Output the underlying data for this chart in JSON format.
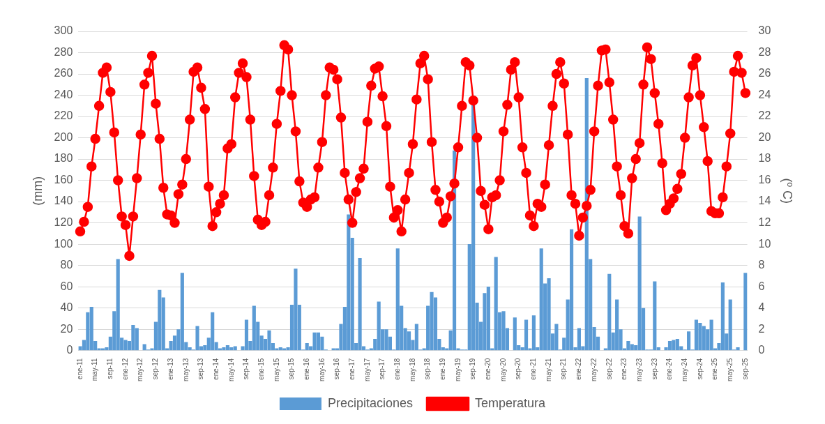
{
  "chart_data": {
    "type": "bar",
    "ylabel": "(mm)",
    "y2label": "(º C)",
    "categories": [
      "ene-11",
      null,
      null,
      null,
      "may-11",
      null,
      null,
      null,
      "sep-11",
      null,
      null,
      null,
      "ene-12",
      null,
      null,
      null,
      "may-12",
      null,
      null,
      null,
      "sep-12",
      null,
      null,
      null,
      "ene-13",
      null,
      null,
      null,
      "may-13",
      null,
      null,
      null,
      "sep-13",
      null,
      null,
      null,
      "ene-14",
      null,
      null,
      null,
      "may-14",
      null,
      null,
      null,
      "sep-14",
      null,
      null,
      null,
      "ene-15",
      null,
      null,
      null,
      "may-15",
      null,
      null,
      null,
      "sep-15",
      null,
      null,
      null,
      "ene-16",
      null,
      null,
      null,
      "may-16",
      null,
      null,
      null,
      "sep-16",
      null,
      null,
      null,
      "ene-17",
      null,
      null,
      null,
      "may-17",
      null,
      null,
      null,
      "sep-17",
      null,
      null,
      null,
      "ene-18",
      null,
      null,
      null,
      "may-18",
      null,
      null,
      null,
      "sep-18",
      null,
      null,
      null,
      "ene-19",
      null,
      null,
      null,
      "may-19",
      null,
      null,
      null,
      "sep-19",
      null,
      null,
      null,
      "ene-20",
      null,
      null,
      null,
      "may-20",
      null,
      null,
      null,
      "sep-20",
      null,
      null,
      null,
      "ene-21",
      null,
      null,
      null,
      "may-21",
      null,
      null,
      null,
      "sep-21",
      null,
      null,
      null,
      "ene-22",
      null,
      null,
      null,
      "may-22",
      null,
      null,
      null,
      "sep-22",
      null,
      null,
      null,
      "ene-23",
      null,
      null,
      null,
      "may-23",
      null,
      null,
      null,
      "sep-23",
      null,
      null,
      null,
      "ene-24",
      null,
      null,
      null,
      "may-24",
      null,
      null,
      null,
      "sep-24",
      null,
      null,
      null,
      "ene-25",
      null,
      null,
      null,
      "may-25",
      null,
      null,
      null,
      "sep-25"
    ],
    "series": [
      {
        "name": "Precipitaciones",
        "color": "#5b9bd5",
        "values": [
          4,
          10,
          36,
          41,
          9,
          2,
          2,
          3,
          13,
          37,
          86,
          12,
          10,
          9,
          24,
          21,
          0,
          6,
          1,
          2,
          27,
          57,
          50,
          2,
          9,
          14,
          20,
          73,
          8,
          3,
          1,
          23,
          4,
          5,
          12,
          36,
          8,
          2,
          3,
          5,
          3,
          4,
          0,
          4,
          29,
          9,
          42,
          27,
          14,
          11,
          19,
          7,
          2,
          3,
          2,
          3,
          43,
          77,
          43,
          1,
          7,
          4,
          17,
          17,
          13,
          1,
          0,
          2,
          2,
          25,
          41,
          128,
          106,
          7,
          87,
          4,
          1,
          2,
          11,
          46,
          20,
          20,
          13,
          1,
          96,
          42,
          21,
          18,
          10,
          25,
          1,
          2,
          42,
          55,
          50,
          11,
          3,
          2,
          19,
          188,
          2,
          1,
          1,
          100,
          232,
          45,
          27,
          54,
          60,
          2,
          88,
          36,
          37,
          21,
          0,
          31,
          5,
          3,
          29,
          2,
          33,
          3,
          96,
          63,
          68,
          16,
          25,
          1,
          12,
          48,
          114,
          3,
          21,
          4,
          256,
          86,
          22,
          13,
          0,
          2,
          72,
          17,
          48,
          20,
          2,
          9,
          6,
          5,
          126,
          40,
          1,
          1,
          65,
          3,
          0,
          3,
          9,
          10,
          11,
          4,
          1,
          18,
          1,
          29,
          26,
          23,
          20,
          29,
          2,
          7,
          64,
          16,
          48,
          1,
          3,
          0,
          73
        ]
      },
      {
        "name": "Temperatura",
        "type": "line",
        "axis": "y2",
        "color": "#ff0000",
        "marker": "circle",
        "values": [
          11.2,
          12.1,
          13.5,
          17.3,
          19.9,
          23.0,
          26.1,
          26.6,
          24.3,
          20.5,
          16.0,
          12.6,
          11.8,
          8.9,
          12.6,
          16.2,
          20.3,
          25.0,
          26.1,
          27.7,
          23.2,
          19.9,
          15.3,
          12.8,
          12.7,
          12.0,
          14.7,
          15.6,
          18.0,
          21.7,
          26.2,
          26.6,
          24.7,
          22.7,
          15.4,
          11.7,
          13.0,
          13.8,
          14.6,
          19.0,
          19.4,
          23.8,
          26.1,
          27.0,
          25.7,
          21.7,
          16.4,
          12.3,
          11.8,
          12.1,
          14.6,
          17.2,
          21.3,
          24.4,
          28.7,
          28.3,
          24.0,
          20.6,
          15.9,
          13.9,
          13.5,
          14.2,
          14.4,
          17.2,
          19.6,
          24.0,
          26.6,
          26.4,
          25.5,
          21.9,
          16.7,
          14.2,
          12.0,
          14.9,
          16.2,
          17.1,
          21.5,
          24.9,
          26.5,
          26.7,
          23.9,
          21.1,
          15.4,
          12.5,
          13.2,
          11.2,
          14.2,
          16.7,
          19.4,
          23.6,
          27.0,
          27.7,
          25.5,
          19.6,
          15.1,
          14.0,
          12.0,
          12.5,
          14.5,
          15.7,
          19.1,
          23.0,
          27.1,
          26.8,
          23.5,
          20.0,
          15.0,
          13.7,
          11.4,
          14.4,
          14.6,
          16.0,
          20.6,
          23.1,
          26.4,
          27.1,
          23.8,
          19.1,
          16.7,
          12.7,
          11.7,
          13.8,
          13.5,
          15.6,
          19.3,
          23.0,
          26.0,
          27.1,
          25.1,
          20.3,
          14.6,
          13.8,
          10.8,
          12.5,
          13.6,
          15.1,
          20.6,
          24.9,
          28.2,
          28.3,
          25.2,
          21.7,
          17.3,
          14.6,
          11.7,
          11.0,
          16.2,
          18.0,
          19.5,
          25.0,
          28.5,
          27.4,
          24.2,
          21.3,
          17.6,
          13.2,
          13.8,
          14.3,
          15.2,
          16.6,
          20.0,
          23.8,
          26.8,
          27.5,
          24.0,
          21.0,
          17.8,
          13.1,
          12.9,
          12.9,
          14.4,
          17.3,
          20.4,
          26.2,
          27.7,
          26.1,
          24.2
        ]
      }
    ],
    "ylim": [
      0,
      300
    ],
    "yticks": [
      0,
      20,
      40,
      60,
      80,
      100,
      120,
      140,
      160,
      180,
      200,
      220,
      240,
      260,
      280,
      300
    ],
    "y2lim": [
      0,
      30
    ],
    "y2ticks": [
      0,
      2,
      4,
      6,
      8,
      10,
      12,
      14,
      16,
      18,
      20,
      22,
      24,
      26,
      28,
      30
    ],
    "grid": "y",
    "legend": "bottom"
  }
}
